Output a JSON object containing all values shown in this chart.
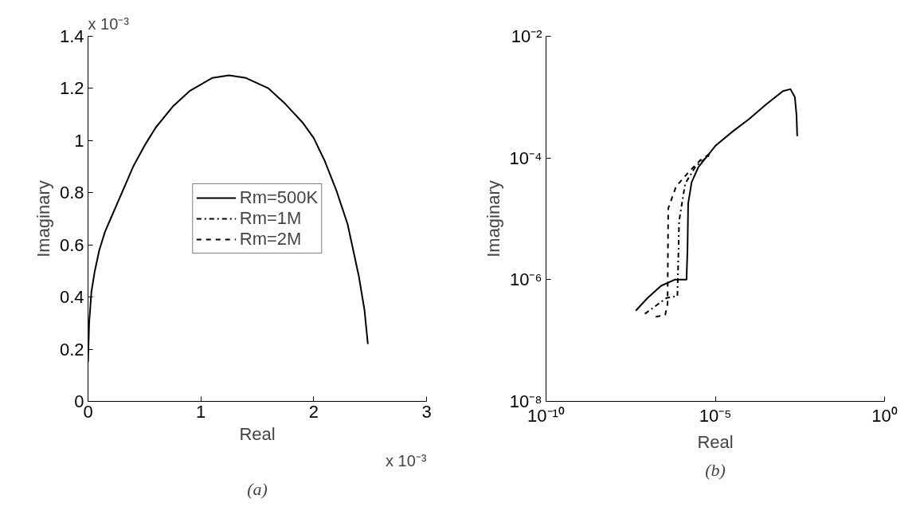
{
  "chart_data": [
    {
      "type": "line",
      "title": "(a)",
      "xlabel": "Real",
      "ylabel": "Imaginary",
      "annotations": [
        "x 10⁻³",
        "x 10⁻³"
      ],
      "xlim": [
        0,
        3
      ],
      "ylim": [
        0,
        1.4
      ],
      "xticks": [
        0,
        1,
        2,
        3
      ],
      "yticks": [
        0,
        0.2,
        0.4,
        0.6,
        0.8,
        1,
        1.2,
        1.4
      ],
      "grid": false,
      "legend": "center",
      "series": [
        {
          "name": "Rm=500K",
          "color": "#000000",
          "line_style": "solid",
          "x": [
            0,
            0.01,
            0.03,
            0.06,
            0.1,
            0.15,
            0.2,
            0.3,
            0.4,
            0.5,
            0.6,
            0.75,
            0.9,
            1.1,
            1.25,
            1.4,
            1.6,
            1.75,
            1.9,
            2.0,
            2.1,
            2.2,
            2.3,
            2.4,
            2.45,
            2.48
          ],
          "values": [
            0.15,
            0.3,
            0.42,
            0.5,
            0.58,
            0.65,
            0.7,
            0.8,
            0.9,
            0.98,
            1.05,
            1.13,
            1.19,
            1.24,
            1.25,
            1.24,
            1.2,
            1.14,
            1.07,
            1.01,
            0.92,
            0.81,
            0.68,
            0.48,
            0.35,
            0.22
          ]
        },
        {
          "name": "Rm=1M",
          "color": "#000000",
          "line_style": "dashdot"
        },
        {
          "name": "Rm=2M",
          "color": "#000000",
          "line_style": "dashed"
        }
      ]
    },
    {
      "type": "line",
      "title": "(b)",
      "xlabel": "Real",
      "ylabel": "Imaginary",
      "log": "xy",
      "xlim": [
        1e-10,
        1
      ],
      "ylim": [
        1e-08,
        0.01
      ],
      "xticks": [
        {
          "value": 1e-10,
          "label": "10⁻¹⁰"
        },
        {
          "value": 1e-05,
          "label": "10⁻⁵"
        },
        {
          "value": 1,
          "label": "10⁰"
        }
      ],
      "yticks": [
        {
          "value": 1e-08,
          "label": "10⁻⁸"
        },
        {
          "value": 1e-06,
          "label": "10⁻⁶"
        },
        {
          "value": 0.0001,
          "label": "10⁻⁴"
        },
        {
          "value": 0.01,
          "label": "10⁻²"
        }
      ],
      "grid": false,
      "series": [
        {
          "color": "#000000",
          "line_style": "solid",
          "x": [
            4.47e-08,
            1e-07,
            2.51e-07,
            6.31e-07,
            1.41e-06,
            1.51e-06,
            1.58e-06,
            2e-06,
            3.16e-06,
            1e-05,
            3.16e-05,
            0.0001,
            0.000316,
            0.001,
            0.00166,
            0.00224,
            0.00251,
            0.00263
          ],
          "values": [
            3.09e-07,
            5.01e-07,
            7.94e-07,
            1e-06,
            1e-06,
            3.16e-06,
            1.78e-05,
            3.98e-05,
            7.08e-05,
            0.000158,
            0.000269,
            0.000437,
            0.000759,
            0.00126,
            0.00135,
            0.001,
            0.000501,
            0.000229
          ]
        },
        {
          "color": "#000000",
          "line_style": "dashdot",
          "x": [
            8.32e-08,
            3.63e-07,
            7.59e-07,
            8.13e-07,
            8.51e-07,
            1.29e-06,
            2.69e-06,
            6.92e-06
          ],
          "values": [
            2.75e-07,
            5.01e-07,
            5.37e-07,
            2.51e-06,
            9.12e-06,
            3.8e-05,
            7.41e-05,
            0.000112
          ]
        },
        {
          "color": "#000000",
          "line_style": "dashed",
          "x": [
            1.74e-07,
            3.31e-07,
            3.89e-07,
            4.07e-07,
            6.92e-07,
            1.58e-06,
            3.72e-06,
            8.51e-06
          ],
          "values": [
            2.45e-07,
            2.63e-07,
            3.98e-07,
            1.48e-05,
            3.39e-05,
            5.75e-05,
            9.33e-05,
            0.000126
          ]
        }
      ]
    }
  ]
}
